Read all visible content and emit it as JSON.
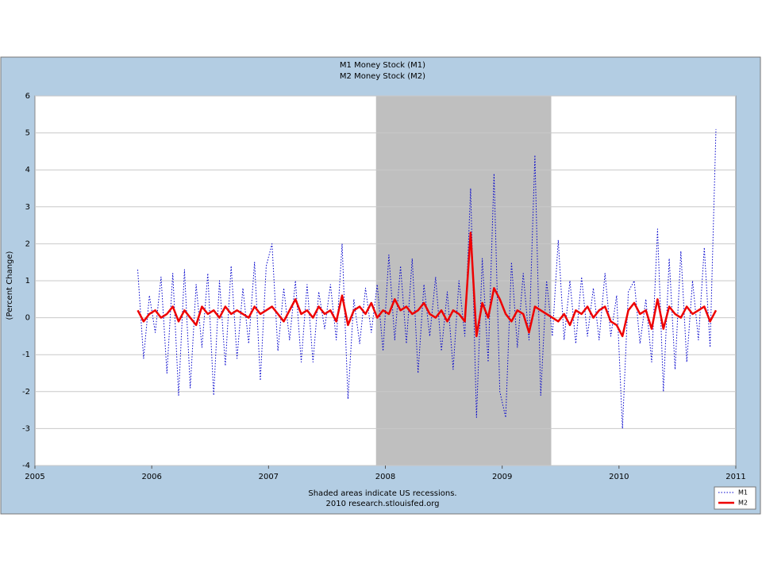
{
  "chart_data": {
    "type": "line",
    "title": "M1 Money Stock (M1)",
    "subtitle": "M2 Money Stock (M2)",
    "y_label": "(Percent Change)",
    "footnote": "Shaded areas indicate US recessions.",
    "source": "2010 research.stlouisfed.org",
    "xlim": [
      2005,
      2011
    ],
    "xticks": [
      2005,
      2006,
      2007,
      2008,
      2009,
      2010,
      2011
    ],
    "ylim": [
      -4,
      6
    ],
    "yticks": [
      -4,
      -3,
      -2,
      -1,
      0,
      1,
      2,
      3,
      4,
      5,
      6
    ],
    "grid": true,
    "legend": "lower right",
    "recessions": [
      {
        "start": 2007.92,
        "end": 2009.42,
        "color": "#bfbfbf"
      }
    ],
    "x": [
      2005.88,
      2005.93,
      2005.98,
      2006.03,
      2006.08,
      2006.13,
      2006.18,
      2006.23,
      2006.28,
      2006.33,
      2006.38,
      2006.43,
      2006.48,
      2006.53,
      2006.58,
      2006.63,
      2006.68,
      2006.73,
      2006.78,
      2006.83,
      2006.88,
      2006.93,
      2006.98,
      2007.03,
      2007.08,
      2007.13,
      2007.18,
      2007.23,
      2007.28,
      2007.33,
      2007.38,
      2007.43,
      2007.48,
      2007.53,
      2007.58,
      2007.63,
      2007.68,
      2007.73,
      2007.78,
      2007.83,
      2007.88,
      2007.93,
      2007.98,
      2008.03,
      2008.08,
      2008.13,
      2008.18,
      2008.23,
      2008.28,
      2008.33,
      2008.38,
      2008.43,
      2008.48,
      2008.53,
      2008.58,
      2008.63,
      2008.68,
      2008.73,
      2008.78,
      2008.83,
      2008.88,
      2008.93,
      2008.98,
      2009.03,
      2009.08,
      2009.13,
      2009.18,
      2009.23,
      2009.28,
      2009.33,
      2009.38,
      2009.43,
      2009.48,
      2009.53,
      2009.58,
      2009.63,
      2009.68,
      2009.73,
      2009.78,
      2009.83,
      2009.88,
      2009.93,
      2009.98,
      2010.03,
      2010.08,
      2010.13,
      2010.18,
      2010.23,
      2010.28,
      2010.33,
      2010.38,
      2010.43,
      2010.48,
      2010.53,
      2010.58,
      2010.63,
      2010.68,
      2010.73,
      2010.78,
      2010.83
    ],
    "series": [
      {
        "name": "M1",
        "color": "#0000cc",
        "dashed": true,
        "values": [
          1.3,
          -1.1,
          0.6,
          -0.4,
          1.1,
          -1.5,
          1.2,
          -2.1,
          1.3,
          -1.9,
          0.9,
          -0.8,
          1.2,
          -2.1,
          1.0,
          -1.3,
          1.4,
          -1.1,
          0.8,
          -0.7,
          1.5,
          -1.7,
          1.4,
          2.0,
          -0.9,
          0.8,
          -0.6,
          1.0,
          -1.2,
          0.9,
          -1.2,
          0.7,
          -0.3,
          0.9,
          -0.6,
          2.0,
          -2.2,
          0.5,
          -0.7,
          0.8,
          -0.4,
          0.9,
          -0.9,
          1.7,
          -0.6,
          1.4,
          -0.7,
          1.6,
          -1.5,
          0.9,
          -0.5,
          1.1,
          -0.9,
          0.7,
          -1.4,
          1.0,
          -0.5,
          3.5,
          -2.7,
          1.6,
          -1.2,
          3.9,
          -2.0,
          -2.7,
          1.5,
          -0.8,
          1.2,
          -0.6,
          4.4,
          -2.1,
          1.0,
          -0.5,
          2.1,
          -0.6,
          1.0,
          -0.7,
          1.1,
          -0.5,
          0.8,
          -0.6,
          1.2,
          -0.5,
          0.6,
          -3.0,
          0.7,
          1.0,
          -0.7,
          0.5,
          -1.2,
          2.4,
          -2.0,
          1.6,
          -1.4,
          1.8,
          -1.2,
          1.0,
          -0.6,
          1.9,
          -0.8,
          5.1
        ]
      },
      {
        "name": "M2",
        "color": "#ee0000",
        "dashed": false,
        "values": [
          0.2,
          -0.1,
          0.1,
          0.2,
          0.0,
          0.1,
          0.3,
          -0.1,
          0.2,
          0.0,
          -0.2,
          0.3,
          0.1,
          0.2,
          0.0,
          0.3,
          0.1,
          0.2,
          0.1,
          0.0,
          0.3,
          0.1,
          0.2,
          0.3,
          0.1,
          -0.1,
          0.2,
          0.5,
          0.1,
          0.2,
          0.0,
          0.3,
          0.1,
          0.2,
          -0.1,
          0.6,
          -0.2,
          0.2,
          0.3,
          0.1,
          0.4,
          0.0,
          0.2,
          0.1,
          0.5,
          0.2,
          0.3,
          0.1,
          0.2,
          0.4,
          0.1,
          0.0,
          0.2,
          -0.1,
          0.2,
          0.1,
          -0.1,
          2.3,
          -0.5,
          0.4,
          0.0,
          0.8,
          0.5,
          0.1,
          -0.1,
          0.2,
          0.1,
          -0.4,
          0.3,
          0.2,
          0.1,
          0.0,
          -0.1,
          0.1,
          -0.2,
          0.2,
          0.1,
          0.3,
          0.0,
          0.2,
          0.3,
          -0.1,
          -0.2,
          -0.5,
          0.2,
          0.4,
          0.1,
          0.2,
          -0.3,
          0.5,
          -0.3,
          0.3,
          0.1,
          0.0,
          0.3,
          0.1,
          0.2,
          0.3,
          -0.1,
          0.2
        ]
      }
    ]
  }
}
